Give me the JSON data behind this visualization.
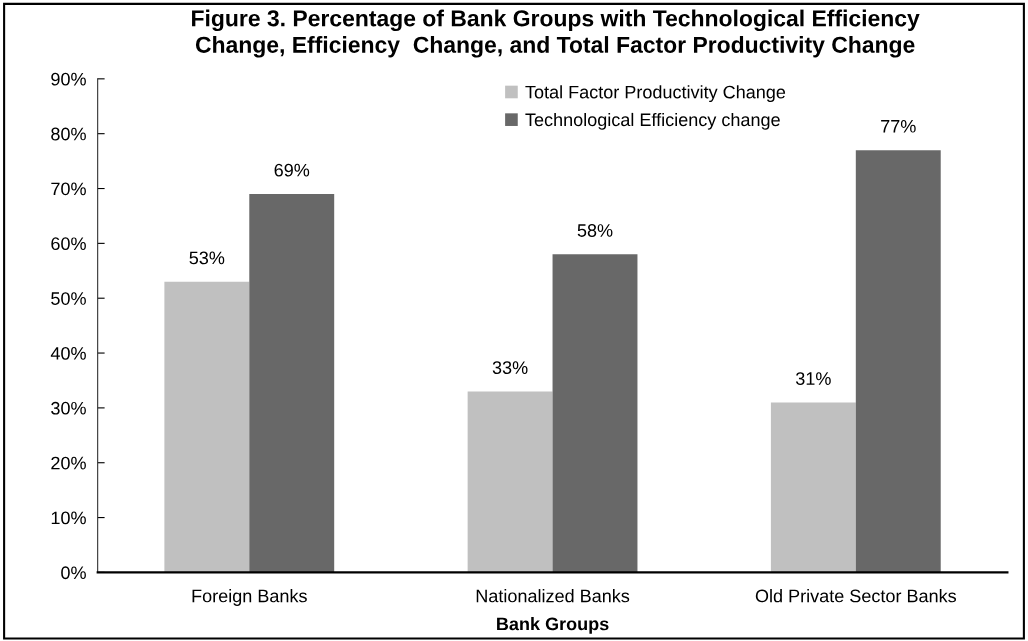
{
  "chart_data": {
    "type": "bar",
    "title": "Figure 3. Percentage of Bank Groups with Technological Efficiency\nChange, Efficiency  Change, and Total Factor Productivity Change",
    "xlabel": "Bank Groups",
    "categories": [
      "Foreign Banks",
      "Nationalized Banks",
      "Old Private Sector Banks"
    ],
    "series": [
      {
        "name": "Total Factor Productivity Change",
        "color": "#c0c0c0",
        "values": [
          53,
          33,
          31
        ],
        "value_labels": [
          "53%",
          "33%",
          "31%"
        ]
      },
      {
        "name": "Technological Efficiency change",
        "color": "#686868",
        "values": [
          69,
          58,
          77
        ],
        "value_labels": [
          "69%",
          "58%",
          "77%"
        ]
      }
    ],
    "ylim": [
      0,
      90
    ],
    "yticks": [
      {
        "value": 0,
        "label": "0%"
      },
      {
        "value": 10,
        "label": "10%"
      },
      {
        "value": 20,
        "label": "20%"
      },
      {
        "value": 30,
        "label": "30%"
      },
      {
        "value": 40,
        "label": "40%"
      },
      {
        "value": 50,
        "label": "50%"
      },
      {
        "value": 60,
        "label": "60%"
      },
      {
        "value": 70,
        "label": "70%"
      },
      {
        "value": 80,
        "label": "80%"
      },
      {
        "value": 90,
        "label": "90%"
      }
    ],
    "grid": false,
    "legend": "top right"
  }
}
